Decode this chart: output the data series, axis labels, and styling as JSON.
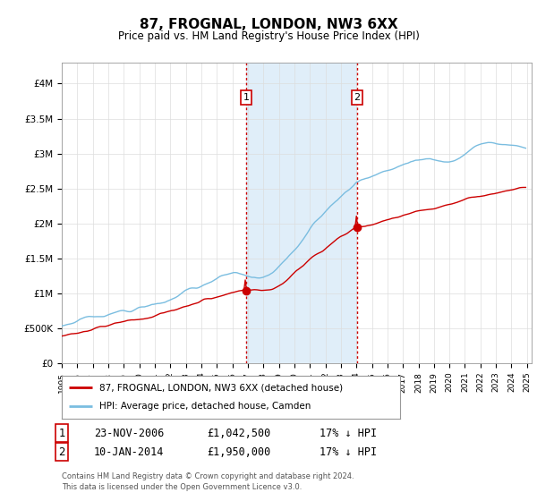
{
  "title": "87, FROGNAL, LONDON, NW3 6XX",
  "subtitle": "Price paid vs. HM Land Registry's House Price Index (HPI)",
  "y_ticks": [
    0,
    500000,
    1000000,
    1500000,
    2000000,
    2500000,
    3000000,
    3500000,
    4000000
  ],
  "y_tick_labels": [
    "£0",
    "£500K",
    "£1M",
    "£1.5M",
    "£2M",
    "£2.5M",
    "£3M",
    "£3.5M",
    "£4M"
  ],
  "ylim": [
    0,
    4300000
  ],
  "x_start_year": 1995,
  "x_end_year": 2025,
  "hpi_color": "#7abde0",
  "price_color": "#cc0000",
  "sale1_price": 1042500,
  "sale2_price": 1950000,
  "sale1_year_float": 2006.9,
  "sale2_year_float": 2014.05,
  "shaded_color": "#cce4f5",
  "vline_color": "#cc0000",
  "legend1": "87, FROGNAL, LONDON, NW3 6XX (detached house)",
  "legend2": "HPI: Average price, detached house, Camden",
  "footer": "Contains HM Land Registry data © Crown copyright and database right 2024.\nThis data is licensed under the Open Government Licence v3.0.",
  "table_row1_num": "1",
  "table_row1_date": "23-NOV-2006",
  "table_row1_price": "£1,042,500",
  "table_row1_hpi": "17% ↓ HPI",
  "table_row2_num": "2",
  "table_row2_date": "10-JAN-2014",
  "table_row2_price": "£1,950,000",
  "table_row2_hpi": "17% ↓ HPI",
  "background_color": "#ffffff",
  "grid_color": "#dddddd"
}
